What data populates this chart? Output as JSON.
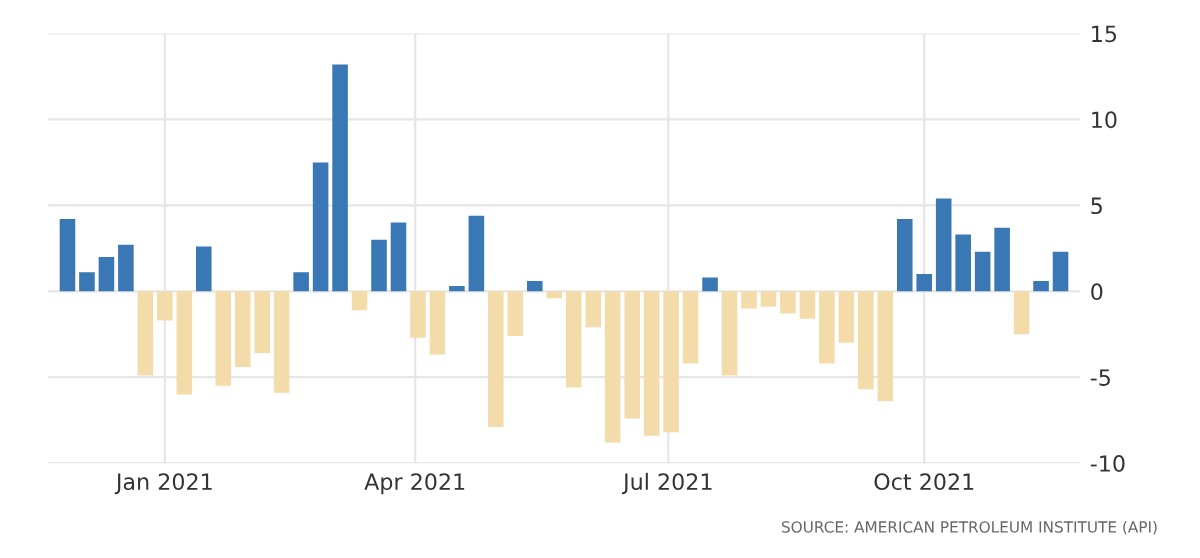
{
  "chart_data": {
    "type": "bar",
    "x": [
      "2020-11-27",
      "2020-12-04",
      "2020-12-11",
      "2020-12-18",
      "2020-12-25",
      "2021-01-01",
      "2021-01-08",
      "2021-01-15",
      "2021-01-22",
      "2021-01-29",
      "2021-02-05",
      "2021-02-12",
      "2021-02-19",
      "2021-02-26",
      "2021-03-05",
      "2021-03-12",
      "2021-03-19",
      "2021-03-26",
      "2021-04-02",
      "2021-04-09",
      "2021-04-16",
      "2021-04-23",
      "2021-04-30",
      "2021-05-07",
      "2021-05-14",
      "2021-05-21",
      "2021-05-28",
      "2021-06-04",
      "2021-06-11",
      "2021-06-18",
      "2021-06-25",
      "2021-07-02",
      "2021-07-09",
      "2021-07-16",
      "2021-07-23",
      "2021-07-30",
      "2021-08-06",
      "2021-08-13",
      "2021-08-20",
      "2021-08-27",
      "2021-09-03",
      "2021-09-10",
      "2021-09-17",
      "2021-09-24",
      "2021-10-01",
      "2021-10-08",
      "2021-10-15",
      "2021-10-22",
      "2021-10-29",
      "2021-11-05",
      "2021-11-12",
      "2021-11-19"
    ],
    "values": [
      4.2,
      1.1,
      2.0,
      2.7,
      -4.9,
      -1.7,
      -6.0,
      2.6,
      -5.5,
      -4.4,
      -3.6,
      -5.9,
      1.1,
      7.5,
      13.2,
      -1.1,
      3.0,
      4.0,
      -2.7,
      -3.7,
      0.3,
      4.4,
      -7.9,
      -2.6,
      0.6,
      -0.4,
      -5.6,
      -2.1,
      -8.8,
      -7.4,
      -8.4,
      -8.2,
      -4.2,
      0.8,
      -4.9,
      -1.0,
      -0.9,
      -1.3,
      -1.6,
      -4.2,
      -3.0,
      -5.7,
      -6.4,
      4.2,
      1.0,
      5.4,
      3.3,
      2.3,
      3.7,
      -2.5,
      0.6,
      2.3
    ],
    "colors": [
      "#3a77b5",
      "#3a77b5",
      "#3a77b5",
      "#3a77b5",
      "#f4dcaa",
      "#f4dcaa",
      "#f4dcaa",
      "#3a77b5",
      "#f4dcaa",
      "#f4dcaa",
      "#f4dcaa",
      "#f4dcaa",
      "#3a77b5",
      "#3a77b5",
      "#3a77b5",
      "#f4dcaa",
      "#3a77b5",
      "#3a77b5",
      "#f4dcaa",
      "#f4dcaa",
      "#3a77b5",
      "#3a77b5",
      "#f4dcaa",
      "#f4dcaa",
      "#3a77b5",
      "#f4dcaa",
      "#f4dcaa",
      "#f4dcaa",
      "#f4dcaa",
      "#f4dcaa",
      "#f4dcaa",
      "#f4dcaa",
      "#f4dcaa",
      "#3a77b5",
      "#f4dcaa",
      "#f4dcaa",
      "#f4dcaa",
      "#f4dcaa",
      "#f4dcaa",
      "#f4dcaa",
      "#f4dcaa",
      "#f4dcaa",
      "#f4dcaa",
      "#3a77b5",
      "#3a77b5",
      "#3a77b5",
      "#3a77b5",
      "#3a77b5",
      "#3a77b5",
      "#f4dcaa",
      "#3a77b5",
      "#3a77b5"
    ],
    "xlim": [
      "2020-11-20",
      "2021-11-26"
    ],
    "xticks": [
      {
        "value": "2021-01-01",
        "label": "Jan 2021"
      },
      {
        "value": "2021-04-01",
        "label": "Apr 2021"
      },
      {
        "value": "2021-07-01",
        "label": "Jul 2021"
      },
      {
        "value": "2021-10-01",
        "label": "Oct 2021"
      }
    ],
    "ylim": [
      -10,
      15
    ],
    "yticks": [
      -10,
      -5,
      0,
      5,
      10,
      15
    ],
    "grid": true,
    "annotations": [
      "SOURCE: AMERICAN PETROLEUM INSTITUTE (API)"
    ]
  }
}
